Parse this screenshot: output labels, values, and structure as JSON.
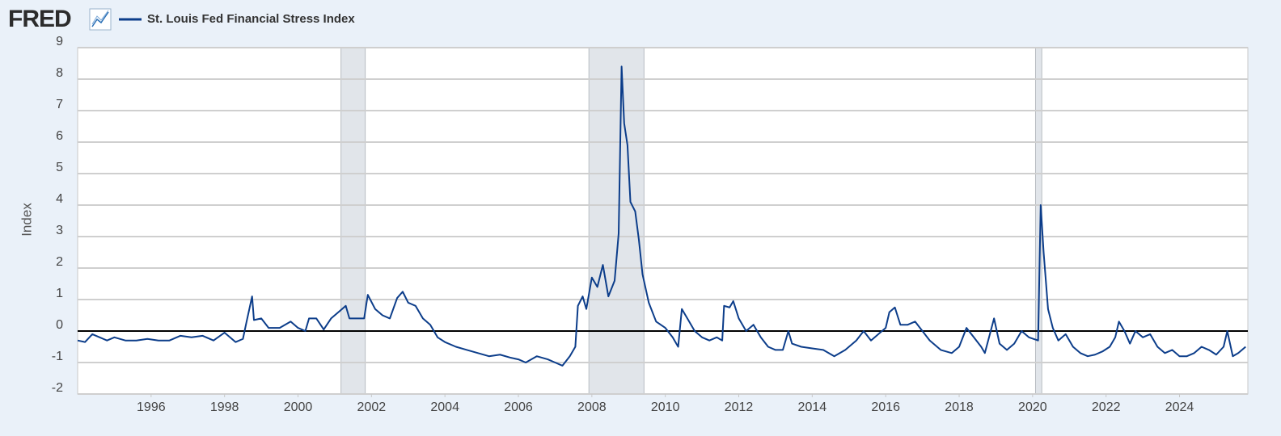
{
  "logo": "FRED",
  "chart_data": {
    "type": "line",
    "ylabel": "Index",
    "xlim": [
      1994.0,
      2025.86
    ],
    "xticks": [
      1996,
      1998,
      2000,
      2002,
      2004,
      2006,
      2008,
      2010,
      2012,
      2014,
      2016,
      2018,
      2020,
      2022,
      2024
    ],
    "ylim": [
      -2,
      9
    ],
    "yticks": [
      -2,
      -1,
      0,
      1,
      2,
      3,
      4,
      5,
      6,
      7,
      8,
      9
    ],
    "grid": true,
    "zero_line": true,
    "recessions": [
      [
        2001.17,
        2001.83
      ],
      [
        2007.92,
        2009.42
      ],
      [
        2020.08,
        2020.25
      ]
    ],
    "x": [
      1994.0,
      1994.2,
      1994.4,
      1994.6,
      1994.8,
      1995.0,
      1995.3,
      1995.6,
      1995.9,
      1996.2,
      1996.5,
      1996.8,
      1997.1,
      1997.4,
      1997.7,
      1998.0,
      1998.3,
      1998.5,
      1998.6,
      1998.75,
      1998.8,
      1999.0,
      1999.2,
      1999.5,
      1999.8,
      2000.0,
      2000.2,
      2000.3,
      2000.5,
      2000.7,
      2000.9,
      2001.1,
      2001.3,
      2001.4,
      2001.6,
      2001.8,
      2001.9,
      2002.1,
      2002.3,
      2002.5,
      2002.7,
      2002.85,
      2003.0,
      2003.2,
      2003.4,
      2003.6,
      2003.8,
      2004.0,
      2004.3,
      2004.6,
      2004.9,
      2005.2,
      2005.5,
      2005.8,
      2006.0,
      2006.2,
      2006.5,
      2006.8,
      2007.0,
      2007.2,
      2007.4,
      2007.55,
      2007.62,
      2007.75,
      2007.85,
      2008.0,
      2008.15,
      2008.3,
      2008.45,
      2008.62,
      2008.73,
      2008.81,
      2008.88,
      2008.97,
      2009.05,
      2009.18,
      2009.28,
      2009.38,
      2009.55,
      2009.75,
      2010.0,
      2010.2,
      2010.35,
      2010.45,
      2010.6,
      2010.8,
      2011.0,
      2011.2,
      2011.4,
      2011.55,
      2011.6,
      2011.75,
      2011.85,
      2012.0,
      2012.2,
      2012.4,
      2012.6,
      2012.8,
      2013.0,
      2013.2,
      2013.35,
      2013.45,
      2013.7,
      2014.0,
      2014.3,
      2014.6,
      2014.9,
      2015.2,
      2015.4,
      2015.6,
      2015.8,
      2016.0,
      2016.1,
      2016.25,
      2016.4,
      2016.6,
      2016.8,
      2017.0,
      2017.2,
      2017.5,
      2017.8,
      2018.0,
      2018.2,
      2018.4,
      2018.6,
      2018.7,
      2018.95,
      2019.1,
      2019.3,
      2019.5,
      2019.7,
      2019.9,
      2020.15,
      2020.22,
      2020.3,
      2020.42,
      2020.55,
      2020.7,
      2020.9,
      2021.1,
      2021.3,
      2021.5,
      2021.7,
      2021.9,
      2022.1,
      2022.25,
      2022.35,
      2022.5,
      2022.65,
      2022.8,
      2023.0,
      2023.2,
      2023.4,
      2023.6,
      2023.8,
      2024.0,
      2024.2,
      2024.4,
      2024.6,
      2024.8,
      2025.0,
      2025.2,
      2025.3,
      2025.45,
      2025.6,
      2025.8
    ],
    "series": [
      {
        "name": "St. Louis Fed Financial Stress Index",
        "color": "#0c3d8a",
        "values": [
          -0.3,
          -0.35,
          -0.1,
          -0.2,
          -0.3,
          -0.2,
          -0.3,
          -0.3,
          -0.25,
          -0.3,
          -0.3,
          -0.15,
          -0.2,
          -0.15,
          -0.3,
          -0.05,
          -0.35,
          -0.25,
          0.3,
          1.1,
          0.35,
          0.4,
          0.1,
          0.1,
          0.3,
          0.1,
          0.0,
          0.4,
          0.4,
          0.05,
          0.4,
          0.6,
          0.8,
          0.4,
          0.4,
          0.4,
          1.15,
          0.7,
          0.5,
          0.4,
          1.05,
          1.25,
          0.9,
          0.8,
          0.4,
          0.2,
          -0.2,
          -0.35,
          -0.5,
          -0.6,
          -0.7,
          -0.8,
          -0.75,
          -0.85,
          -0.9,
          -1.0,
          -0.8,
          -0.9,
          -1.0,
          -1.1,
          -0.8,
          -0.5,
          0.8,
          1.1,
          0.7,
          1.7,
          1.4,
          2.1,
          1.1,
          1.6,
          3.1,
          8.4,
          6.6,
          5.9,
          4.1,
          3.8,
          2.9,
          1.8,
          0.9,
          0.3,
          0.1,
          -0.2,
          -0.5,
          0.7,
          0.4,
          0.0,
          -0.2,
          -0.3,
          -0.2,
          -0.3,
          0.8,
          0.75,
          0.95,
          0.4,
          0.0,
          0.2,
          -0.2,
          -0.5,
          -0.6,
          -0.6,
          0.0,
          -0.4,
          -0.5,
          -0.55,
          -0.6,
          -0.8,
          -0.6,
          -0.3,
          0.0,
          -0.3,
          -0.1,
          0.1,
          0.6,
          0.75,
          0.2,
          0.2,
          0.3,
          0.0,
          -0.3,
          -0.6,
          -0.7,
          -0.5,
          0.1,
          -0.2,
          -0.5,
          -0.7,
          0.4,
          -0.4,
          -0.6,
          -0.4,
          0.0,
          -0.2,
          -0.3,
          4.0,
          2.5,
          0.7,
          0.1,
          -0.3,
          -0.1,
          -0.5,
          -0.7,
          -0.8,
          -0.75,
          -0.65,
          -0.5,
          -0.2,
          0.3,
          0.0,
          -0.4,
          0.0,
          -0.2,
          -0.1,
          -0.5,
          -0.7,
          -0.6,
          -0.8,
          -0.8,
          -0.7,
          -0.5,
          -0.6,
          -0.75,
          -0.5,
          0.0,
          -0.8,
          -0.7,
          -0.5
        ]
      }
    ]
  }
}
